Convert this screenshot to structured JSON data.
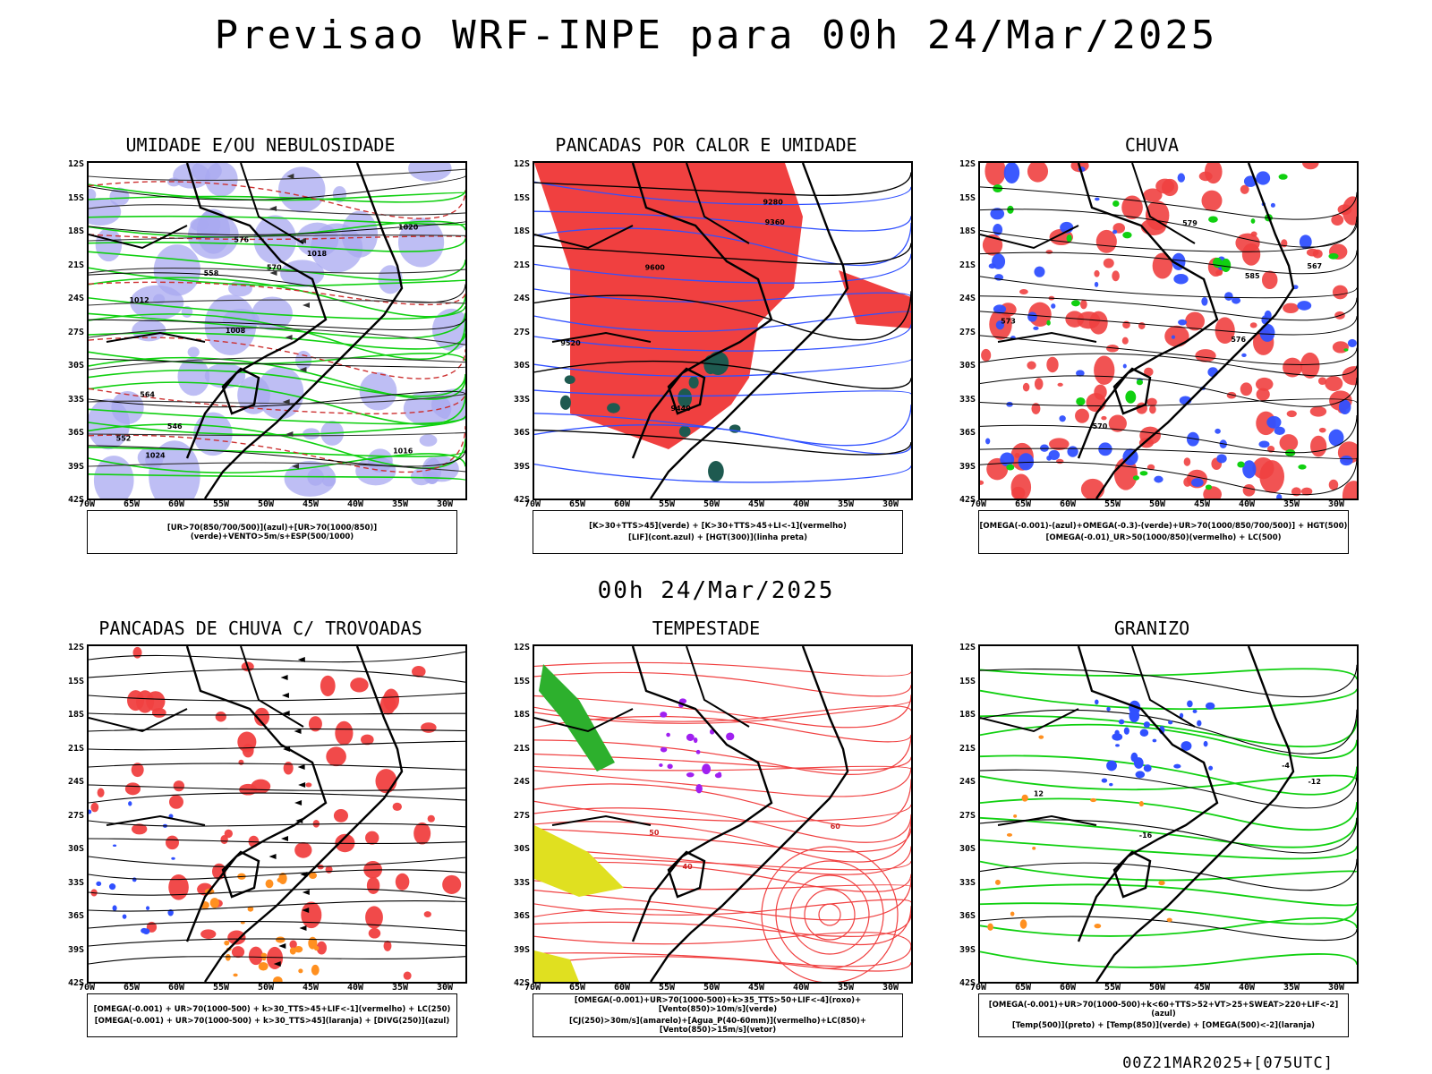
{
  "title": "Previsao WRF-INPE  para 00h 24/Mar/2025",
  "mid_title": "00h 24/Mar/2025",
  "footer": "00Z21MAR2025+[075UTC]",
  "axes": {
    "lat_ticks": [
      "12S",
      "15S",
      "18S",
      "21S",
      "24S",
      "27S",
      "30S",
      "33S",
      "36S",
      "39S",
      "42S"
    ],
    "lon_ticks": [
      "70W",
      "65W",
      "60W",
      "55W",
      "50W",
      "45W",
      "40W",
      "35W",
      "30W"
    ]
  },
  "colors": {
    "blue": "#3050ff",
    "lavender": "#a8a8f0",
    "green": "#10d010",
    "red": "#f04040",
    "orange": "#ff9020",
    "yellow": "#e0e020",
    "purple": "#a020f0",
    "darkgreen": "#1e5a50"
  },
  "panels": [
    {
      "title": "UMIDADE E/OU NEBULOSIDADE",
      "legend": [
        "[UR>70(850/700/500)](azul)+[UR>70(1000/850)](verde)+VENTO>5m/s+ESP(500/1000)"
      ],
      "contour_labels": [
        "1016",
        "1012",
        "1020",
        "1008",
        "1018",
        "1024",
        "576",
        "570",
        "564",
        "558",
        "552",
        "546"
      ]
    },
    {
      "title": "PANCADAS POR CALOR E UMIDADE",
      "legend": [
        "[K>30+TTS>45](verde) + [K>30+TTS>45+LI<-1](vermelho)",
        "[LIF](cont.azul) + [HGT(300)](linha preta)"
      ],
      "contour_labels": [
        "9600",
        "9520",
        "9440",
        "9360",
        "9280"
      ]
    },
    {
      "title": "CHUVA",
      "legend": [
        "[OMEGA(-0.001)-(azul)+OMEGA(-0.3)-(verde)+UR>70(1000/850/700/500)] + HGT(500)",
        "[OMEGA(-0.01)_UR>50(1000/850)(vermelho) + LC(500)"
      ],
      "contour_labels": [
        "585",
        "579",
        "576",
        "573",
        "570",
        "567"
      ]
    },
    {
      "title": "PANCADAS DE CHUVA C/ TROVOADAS",
      "legend": [
        "[OMEGA(-0.001) + UR>70(1000-500) + k>30_TTS>45+LIF<-1](vermelho) + LC(250)",
        "[OMEGA(-0.001) + UR>70(1000-500) + k>30_TTS>45](laranja) + [DIVG(250)](azul)"
      ],
      "contour_labels": []
    },
    {
      "title": "TEMPESTADE",
      "legend": [
        "[OMEGA(-0.001)+UR>70(1000-500)+k>35_TTS>50+LIF<-4](roxo)+[Vento(850)>10m/s](verde)",
        "[CJ(250)>30m/s](amarelo)+[Agua_P(40-60mm)](vermelho)+LC(850)+[Vento(850)>15m/s](vetor)"
      ],
      "contour_labels": [
        "40",
        "50",
        "60"
      ]
    },
    {
      "title": "GRANIZO",
      "legend": [
        "[OMEGA(-0.001)+UR>70(1000-500)+k<60+TTS>52+VT>25+SWEAT>220+LIF<-2](azul)",
        "[Temp(500)](preto) + [Temp(850)](verde) + [OMEGA(500)<-2](laranja)"
      ],
      "contour_labels": [
        "-12",
        "-16",
        "12",
        "-4"
      ]
    }
  ]
}
